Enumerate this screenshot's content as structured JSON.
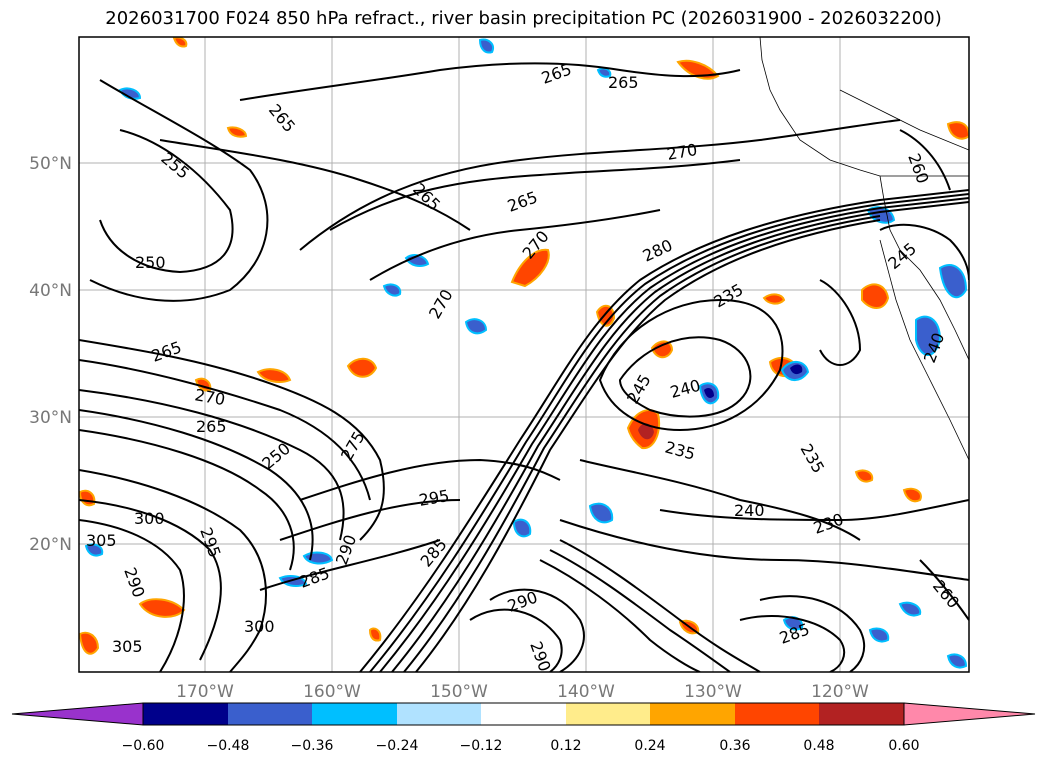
{
  "title": "2026031700 F024 850 hPa refract., river basin precipitation PC (2026031900 - 2026032200)",
  "lat_labels": [
    "50°N",
    "40°N",
    "30°N",
    "20°N"
  ],
  "lon_labels": [
    "170°W",
    "160°W",
    "150°W",
    "140°W",
    "130°W",
    "120°W"
  ],
  "contour_labels": [
    "255",
    "250",
    "265",
    "265",
    "265",
    "270",
    "265",
    "265",
    "270",
    "280",
    "235",
    "270",
    "275",
    "245",
    "240",
    "235",
    "235",
    "240",
    "230",
    "295",
    "290",
    "300",
    "305",
    "290",
    "295",
    "305",
    "300",
    "285",
    "290",
    "285",
    "290",
    "285",
    "250",
    "260",
    "245",
    "240",
    "265",
    "270",
    "265",
    "260"
  ],
  "colorbar": {
    "ticks": [
      "−0.60",
      "−0.48",
      "−0.36",
      "−0.24",
      "−0.12",
      "0.12",
      "0.24",
      "0.36",
      "0.48",
      "0.60"
    ],
    "colors": [
      "#9932cc",
      "#00008b",
      "#3a5fcd",
      "#00bfff",
      "#b0e2ff",
      "#ffffff",
      "#ffec8b",
      "#ffa500",
      "#ff4500",
      "#b22222",
      "#ff88aa"
    ]
  }
}
